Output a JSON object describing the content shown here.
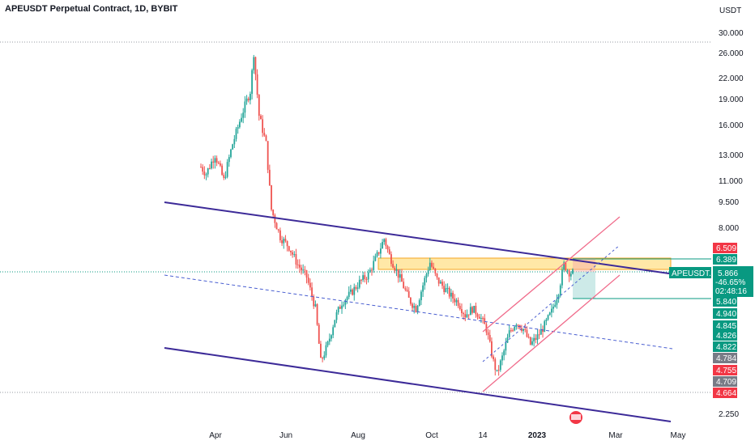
{
  "header": {
    "title": "APEUSDT Perpetual Contract, 1D, BYBIT"
  },
  "colors": {
    "up": "#26a69a",
    "down": "#ef5350",
    "channel": "#3c2a98",
    "uptrend_channel": "#f06a8a",
    "zone_fill": "#ffe08a",
    "zone_border": "#f5a623",
    "badge_green": "#089981",
    "badge_red": "#f23645",
    "badge_gray": "#787b86",
    "axis_text": "#131722"
  },
  "chart_data": {
    "type": "candlestick",
    "title": "APEUSDT Perpetual Contract, 1D, BYBIT",
    "yaxis": {
      "unit": "USDT",
      "scale": "log",
      "tick_labels": [
        "30.000",
        "26.000",
        "22.000",
        "19.000",
        "16.000",
        "13.000",
        "11.000",
        "9.500",
        "8.000",
        "2.250"
      ]
    },
    "xaxis": {
      "tick_labels": [
        "Apr",
        "Jun",
        "Aug",
        "Oct",
        "14",
        "2023",
        "Mar",
        "May"
      ]
    },
    "symbol_badge": {
      "label": "APEUSDT.P",
      "price": "5.866",
      "change": "-46.65%",
      "countdown": "02:48:16"
    },
    "price_badges": [
      {
        "value": "6.509",
        "kind": "red"
      },
      {
        "value": "6.389",
        "kind": "green"
      },
      {
        "value": "5.840",
        "kind": "green"
      },
      {
        "value": "4.940",
        "kind": "green"
      },
      {
        "value": "4.845",
        "kind": "green"
      },
      {
        "value": "4.826",
        "kind": "green"
      },
      {
        "value": "4.822",
        "kind": "green"
      },
      {
        "value": "4.784",
        "kind": "gray"
      },
      {
        "value": "4.755",
        "kind": "red"
      },
      {
        "value": "4.709",
        "kind": "gray"
      },
      {
        "value": "4.664",
        "kind": "red"
      }
    ],
    "drawings": {
      "descending_channel": "Upper and lower purple trendlines with dashed midline",
      "rising_channel": "Pink ascending channel with dashed midline",
      "resistance_zone": "Orange horizontal zone near 6.4",
      "long_position": "Green risk/reward box"
    },
    "price_path": [
      {
        "t": 0,
        "p": 12
      },
      {
        "t": 3,
        "p": 11.5
      },
      {
        "t": 8,
        "p": 13
      },
      {
        "t": 13,
        "p": 11
      },
      {
        "t": 18,
        "p": 14
      },
      {
        "t": 23,
        "p": 17
      },
      {
        "t": 28,
        "p": 20
      },
      {
        "t": 30,
        "p": 26
      },
      {
        "t": 33,
        "p": 17
      },
      {
        "t": 37,
        "p": 14
      },
      {
        "t": 40,
        "p": 9
      },
      {
        "t": 45,
        "p": 7.5
      },
      {
        "t": 50,
        "p": 7
      },
      {
        "t": 55,
        "p": 6.2
      },
      {
        "t": 60,
        "p": 5.7
      },
      {
        "t": 65,
        "p": 4.6
      },
      {
        "t": 68,
        "p": 3.2
      },
      {
        "t": 72,
        "p": 3.6
      },
      {
        "t": 76,
        "p": 4.3
      },
      {
        "t": 80,
        "p": 4.8
      },
      {
        "t": 85,
        "p": 5.1
      },
      {
        "t": 90,
        "p": 5.5
      },
      {
        "t": 95,
        "p": 5.8
      },
      {
        "t": 100,
        "p": 6.6
      },
      {
        "t": 104,
        "p": 7.4
      },
      {
        "t": 107,
        "p": 6.6
      },
      {
        "t": 110,
        "p": 6.1
      },
      {
        "t": 114,
        "p": 5.5
      },
      {
        "t": 118,
        "p": 4.9
      },
      {
        "t": 122,
        "p": 4.6
      },
      {
        "t": 126,
        "p": 5.4
      },
      {
        "t": 130,
        "p": 6.3
      },
      {
        "t": 134,
        "p": 5.6
      },
      {
        "t": 138,
        "p": 5.3
      },
      {
        "t": 142,
        "p": 5
      },
      {
        "t": 146,
        "p": 4.8
      },
      {
        "t": 150,
        "p": 4.4
      },
      {
        "t": 154,
        "p": 4.6
      },
      {
        "t": 158,
        "p": 4.4
      },
      {
        "t": 162,
        "p": 4.0
      },
      {
        "t": 166,
        "p": 3.2
      },
      {
        "t": 168,
        "p": 2.95
      },
      {
        "t": 171,
        "p": 3.3
      },
      {
        "t": 175,
        "p": 3.9
      },
      {
        "t": 179,
        "p": 4.2
      },
      {
        "t": 183,
        "p": 4.0
      },
      {
        "t": 187,
        "p": 3.6
      },
      {
        "t": 191,
        "p": 3.8
      },
      {
        "t": 195,
        "p": 4.1
      },
      {
        "t": 199,
        "p": 4.5
      },
      {
        "t": 203,
        "p": 5.2
      },
      {
        "t": 206,
        "p": 6.2
      },
      {
        "t": 209,
        "p": 5.9
      },
      {
        "t": 211,
        "p": 5.87
      }
    ]
  }
}
